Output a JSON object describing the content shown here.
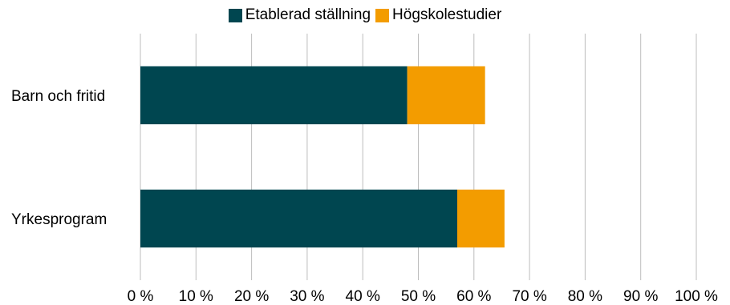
{
  "chart_data": {
    "type": "bar",
    "orientation": "horizontal",
    "stacked": true,
    "categories": [
      "Barn och fritid",
      "Yrkesprogram"
    ],
    "series": [
      {
        "name": "Etablerad ställning",
        "values": [
          48,
          57
        ],
        "color": "#004650"
      },
      {
        "name": "Högskolestudier",
        "values": [
          14,
          8.5
        ],
        "color": "#f39c00"
      }
    ],
    "x_ticks": [
      "0 %",
      "10 %",
      "20 %",
      "30 %",
      "40 %",
      "50 %",
      "60 %",
      "70 %",
      "80 %",
      "90 %",
      "100 %"
    ],
    "xlim": [
      0,
      100
    ],
    "grid": true,
    "legend_position": "top"
  }
}
